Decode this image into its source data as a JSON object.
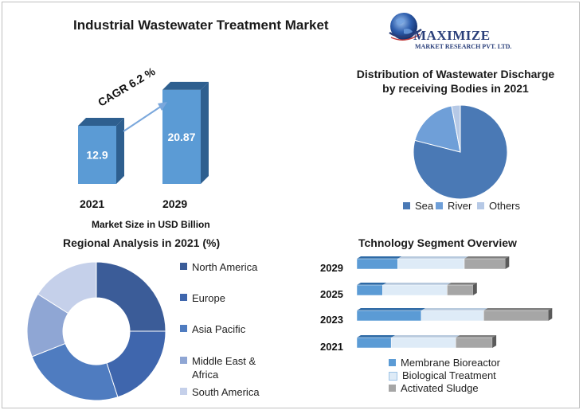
{
  "header": {
    "title": "Industrial Wastewater Treatment Market",
    "logo_name": "MAXIMIZE",
    "logo_tagline": "MARKET RESEARCH PVT. LTD."
  },
  "colors": {
    "dark_blue": "#3b5c98",
    "mid_blue": "#4f7cc0",
    "light_blue": "#8fa6d4",
    "pale_blue": "#c5d0ea",
    "sea": "#4a79b5",
    "river": "#6f9fd8",
    "others": "#b6c9e6",
    "bar_front": "#5b9bd5",
    "bar_side": "#2e5f8f",
    "seg_membrane": "#5b9bd5",
    "seg_bio": "#deebf7",
    "seg_sludge": "#a6a6a6"
  },
  "chart_data": [
    {
      "type": "bar",
      "title": "Market Size in USD Billion",
      "categories": [
        "2021",
        "2029"
      ],
      "values": [
        12.9,
        20.87
      ],
      "value_labels": [
        "12.9",
        "20.87"
      ],
      "annotation": "CAGR 6.2 %",
      "ylim": [
        0,
        22
      ]
    },
    {
      "type": "pie",
      "title": "Distribution of Wastewater Discharge by receiving Bodies in 2021",
      "labels": [
        "Sea",
        "River",
        "Others"
      ],
      "values": [
        79,
        18,
        3
      ]
    },
    {
      "type": "pie",
      "title": "Regional Analysis in 2021 (%)",
      "labels": [
        "North America",
        "Europe",
        "Asia Pacific",
        "Middle East & Africa",
        "South America"
      ],
      "values": [
        25,
        20,
        24,
        15,
        16
      ]
    },
    {
      "type": "bar",
      "title": "Tchnology Segment Overview",
      "categories": [
        "2029",
        "2025",
        "2023",
        "2021"
      ],
      "series": [
        {
          "name": "Membrane Bioreactor",
          "values": [
            19,
            12,
            30,
            16
          ]
        },
        {
          "name": "Biological Treatment",
          "values": [
            31,
            30,
            29,
            30
          ]
        },
        {
          "name": "Activated Sludge",
          "values": [
            19,
            12,
            30,
            17
          ]
        }
      ]
    }
  ]
}
